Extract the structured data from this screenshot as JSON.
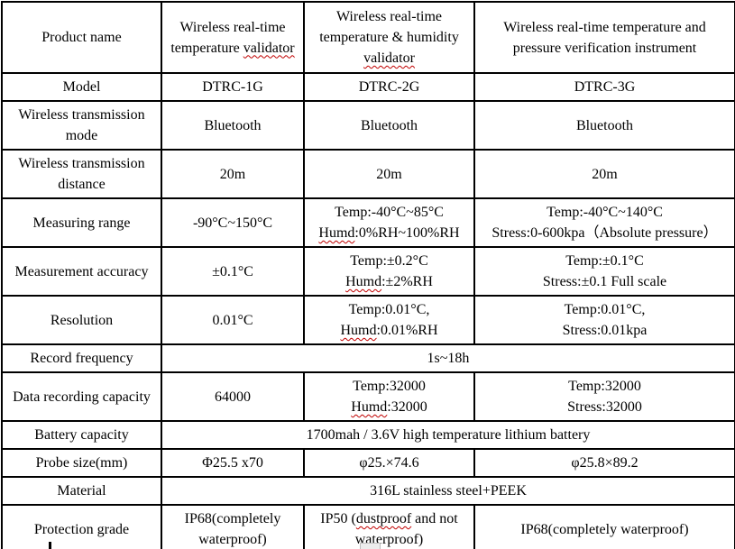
{
  "spellcheck_color": "#c00000",
  "border_color": "#000000",
  "table": {
    "rows": [
      {
        "cells": [
          {
            "lines": [
              [
                {
                  "t": "Product name"
                }
              ]
            ]
          },
          {
            "lines": [
              [
                {
                  "t": "Wireless real-time"
                }
              ],
              [
                {
                  "t": "temperature "
                },
                {
                  "t": "validator",
                  "wavy": true
                }
              ]
            ]
          },
          {
            "lines": [
              [
                {
                  "t": "Wireless real-time"
                }
              ],
              [
                {
                  "t": "temperature & humidity"
                }
              ],
              [
                {
                  "t": "validator",
                  "wavy": true
                }
              ]
            ]
          },
          {
            "lines": [
              [
                {
                  "t": "Wireless real-time temperature and"
                }
              ],
              [
                {
                  "t": "pressure verification instrument"
                }
              ]
            ]
          }
        ]
      },
      {
        "cells": [
          {
            "lines": [
              [
                {
                  "t": "Model"
                }
              ]
            ]
          },
          {
            "lines": [
              [
                {
                  "t": "DTRC-1G"
                }
              ]
            ]
          },
          {
            "lines": [
              [
                {
                  "t": "DTRC-2G"
                }
              ]
            ]
          },
          {
            "lines": [
              [
                {
                  "t": "DTRC-3G"
                }
              ]
            ]
          }
        ]
      },
      {
        "cells": [
          {
            "lines": [
              [
                {
                  "t": "Wireless transmission"
                }
              ],
              [
                {
                  "t": "mode"
                }
              ]
            ]
          },
          {
            "lines": [
              [
                {
                  "t": "Bluetooth"
                }
              ]
            ]
          },
          {
            "lines": [
              [
                {
                  "t": "Bluetooth"
                }
              ]
            ]
          },
          {
            "lines": [
              [
                {
                  "t": "Bluetooth"
                }
              ]
            ]
          }
        ]
      },
      {
        "cells": [
          {
            "lines": [
              [
                {
                  "t": "Wireless transmission"
                }
              ],
              [
                {
                  "t": "distance"
                }
              ]
            ]
          },
          {
            "lines": [
              [
                {
                  "t": "20m"
                }
              ]
            ]
          },
          {
            "lines": [
              [
                {
                  "t": "20m"
                }
              ]
            ]
          },
          {
            "lines": [
              [
                {
                  "t": "20m"
                }
              ]
            ]
          }
        ]
      },
      {
        "cells": [
          {
            "lines": [
              [
                {
                  "t": "Measuring range"
                }
              ]
            ]
          },
          {
            "lines": [
              [
                {
                  "t": "-90°C~150°C"
                }
              ]
            ]
          },
          {
            "lines": [
              [
                {
                  "t": "Temp:-40°C~85°C"
                }
              ],
              [
                {
                  "t": "Humd",
                  "wavy": true
                },
                {
                  "t": ":0%RH~100%RH"
                }
              ]
            ]
          },
          {
            "lines": [
              [
                {
                  "t": "Temp:-40°C~140°C"
                }
              ],
              [
                {
                  "t": "Stress:0-600kpa（Absolute pressure）"
                }
              ]
            ]
          }
        ]
      },
      {
        "cells": [
          {
            "lines": [
              [
                {
                  "t": "Measurement accuracy"
                }
              ]
            ]
          },
          {
            "lines": [
              [
                {
                  "t": "±0.1°C"
                }
              ]
            ]
          },
          {
            "lines": [
              [
                {
                  "t": "Temp:±0.2°C"
                }
              ],
              [
                {
                  "t": "Humd",
                  "wavy": true
                },
                {
                  "t": ":±2%RH"
                }
              ]
            ]
          },
          {
            "lines": [
              [
                {
                  "t": "Temp:±0.1°C"
                }
              ],
              [
                {
                  "t": "Stress:±0.1 Full scale"
                }
              ]
            ]
          }
        ]
      },
      {
        "cells": [
          {
            "lines": [
              [
                {
                  "t": "Resolution"
                }
              ]
            ]
          },
          {
            "lines": [
              [
                {
                  "t": "0.01°C"
                }
              ]
            ]
          },
          {
            "lines": [
              [
                {
                  "t": "Temp:0.01°C,"
                }
              ],
              [
                {
                  "t": "Humd",
                  "wavy": true
                },
                {
                  "t": ":0.01%RH"
                }
              ]
            ]
          },
          {
            "lines": [
              [
                {
                  "t": "Temp:0.01°C,"
                }
              ],
              [
                {
                  "t": "Stress:0.01kpa"
                }
              ]
            ]
          }
        ]
      },
      {
        "cells": [
          {
            "lines": [
              [
                {
                  "t": "Record frequency"
                }
              ]
            ]
          },
          {
            "colspan": 3,
            "lines": [
              [
                {
                  "t": "1s~18h"
                }
              ]
            ]
          }
        ]
      },
      {
        "cells": [
          {
            "lines": [
              [
                {
                  "t": "Data recording capacity"
                }
              ]
            ]
          },
          {
            "lines": [
              [
                {
                  "t": "64000"
                }
              ]
            ]
          },
          {
            "lines": [
              [
                {
                  "t": "Temp:32000"
                }
              ],
              [
                {
                  "t": "Humd",
                  "wavy": true
                },
                {
                  "t": ":32000"
                }
              ]
            ]
          },
          {
            "lines": [
              [
                {
                  "t": "Temp:32000"
                }
              ],
              [
                {
                  "t": "Stress:32000"
                }
              ]
            ]
          }
        ]
      },
      {
        "cells": [
          {
            "lines": [
              [
                {
                  "t": "Battery capacity"
                }
              ]
            ]
          },
          {
            "colspan": 3,
            "lines": [
              [
                {
                  "t": "1700mah / 3.6V high temperature lithium battery"
                }
              ]
            ]
          }
        ]
      },
      {
        "cells": [
          {
            "lines": [
              [
                {
                  "t": "Probe size(mm)"
                }
              ]
            ]
          },
          {
            "lines": [
              [
                {
                  "t": "Φ25.5 x70"
                }
              ]
            ]
          },
          {
            "lines": [
              [
                {
                  "t": "φ25.×74.6"
                }
              ]
            ]
          },
          {
            "lines": [
              [
                {
                  "t": "φ25.8×89.2"
                }
              ]
            ]
          }
        ]
      },
      {
        "cells": [
          {
            "lines": [
              [
                {
                  "t": "Material"
                }
              ]
            ]
          },
          {
            "colspan": 3,
            "lines": [
              [
                {
                  "t": "316L stainless steel+PEEK"
                }
              ]
            ]
          }
        ]
      },
      {
        "cells": [
          {
            "lines": [
              [
                {
                  "t": "Protection grade"
                }
              ]
            ]
          },
          {
            "lines": [
              [
                {
                  "t": "IP68(completely"
                }
              ],
              [
                {
                  "t": "waterproof)"
                }
              ]
            ]
          },
          {
            "lines": [
              [
                {
                  "t": "IP50 ("
                },
                {
                  "t": "dustproof",
                  "wavy": true
                },
                {
                  "t": " and not"
                }
              ],
              [
                {
                  "t": "waterproof)"
                }
              ]
            ]
          },
          {
            "lines": [
              [
                {
                  "t": "IP68(completely waterproof)"
                }
              ]
            ]
          }
        ]
      }
    ]
  }
}
